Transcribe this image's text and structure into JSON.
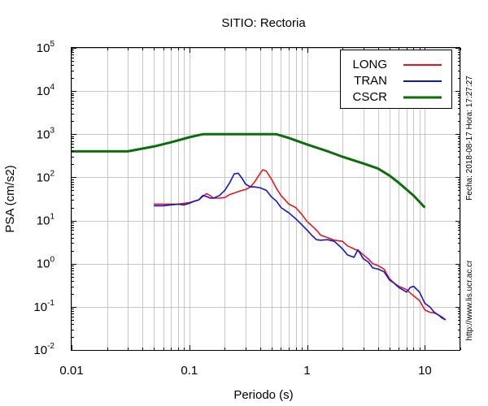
{
  "chart_data": {
    "type": "line",
    "title": "SITIO: Rectoria",
    "xlabel": "Periodo (s)",
    "ylabel": "PSA (cm/s2)",
    "x_scale": "log",
    "y_scale": "log",
    "xlim": [
      0.01,
      20
    ],
    "ylim": [
      0.01,
      100000
    ],
    "grid": true,
    "legend_position": "top-right",
    "x_ticks": [
      {
        "value": 0.01,
        "label": "0.01"
      },
      {
        "value": 0.1,
        "label": "0.1"
      },
      {
        "value": 1,
        "label": "1"
      },
      {
        "value": 10,
        "label": "10"
      }
    ],
    "y_ticks": [
      {
        "value": 0.01,
        "base": "10",
        "exp": "-2"
      },
      {
        "value": 0.1,
        "base": "10",
        "exp": "-1"
      },
      {
        "value": 1,
        "base": "10",
        "exp": "0"
      },
      {
        "value": 10,
        "base": "10",
        "exp": "1"
      },
      {
        "value": 100,
        "base": "10",
        "exp": "2"
      },
      {
        "value": 1000,
        "base": "10",
        "exp": "3"
      },
      {
        "value": 10000,
        "base": "10",
        "exp": "4"
      },
      {
        "value": 100000,
        "base": "10",
        "exp": "5"
      }
    ],
    "series": [
      {
        "name": "LONG",
        "color": "#e8161b",
        "x": [
          0.05,
          0.06,
          0.07,
          0.08,
          0.09,
          0.1,
          0.11,
          0.12,
          0.13,
          0.14,
          0.15,
          0.16,
          0.18,
          0.2,
          0.22,
          0.25,
          0.28,
          0.3,
          0.33,
          0.36,
          0.4,
          0.42,
          0.45,
          0.5,
          0.55,
          0.6,
          0.7,
          0.8,
          0.9,
          1.0,
          1.1,
          1.2,
          1.3,
          1.5,
          1.7,
          2.0,
          2.2,
          2.5,
          2.8,
          3.0,
          3.3,
          3.6,
          4.0,
          4.5,
          5.0,
          5.5,
          6.0,
          7.0,
          8.0,
          9.0,
          10.0,
          11.0,
          12.0,
          13.0,
          14.0,
          15.0
        ],
        "y": [
          24,
          24,
          24,
          24,
          25,
          26,
          28,
          30,
          36,
          42,
          38,
          33,
          33,
          34,
          40,
          45,
          50,
          52,
          60,
          80,
          125,
          150,
          140,
          90,
          55,
          38,
          24,
          20,
          14,
          9.5,
          7.5,
          6,
          4.6,
          4.0,
          3.5,
          3.3,
          2.6,
          2.2,
          1.9,
          1.6,
          1.3,
          1.0,
          0.9,
          0.75,
          0.45,
          0.35,
          0.3,
          0.25,
          0.18,
          0.14,
          0.085,
          0.075,
          0.072,
          0.065,
          0.058,
          0.05
        ]
      },
      {
        "name": "TRAN",
        "color": "#1414cc",
        "x": [
          0.05,
          0.06,
          0.07,
          0.08,
          0.09,
          0.1,
          0.11,
          0.12,
          0.13,
          0.14,
          0.15,
          0.16,
          0.18,
          0.2,
          0.22,
          0.24,
          0.26,
          0.28,
          0.3,
          0.33,
          0.36,
          0.4,
          0.45,
          0.5,
          0.55,
          0.6,
          0.7,
          0.8,
          0.9,
          1.0,
          1.1,
          1.2,
          1.3,
          1.5,
          1.7,
          2.0,
          2.2,
          2.5,
          2.7,
          3.0,
          3.3,
          3.6,
          4.0,
          4.5,
          5.0,
          5.5,
          6.0,
          7.0,
          7.5,
          8.0,
          9.0,
          10.0,
          11.0,
          12.0,
          13.0,
          14.0,
          15.0
        ],
        "y": [
          22,
          22,
          23,
          24,
          23,
          25,
          28,
          30,
          38,
          36,
          33,
          33,
          38,
          50,
          75,
          120,
          125,
          95,
          70,
          60,
          60,
          57,
          50,
          35,
          28,
          20,
          15,
          11,
          8.0,
          6.0,
          4.5,
          3.6,
          3.5,
          3.6,
          3.3,
          2.2,
          1.6,
          1.4,
          2.1,
          1.3,
          1.1,
          0.8,
          0.75,
          0.65,
          0.42,
          0.35,
          0.28,
          0.22,
          0.28,
          0.3,
          0.22,
          0.12,
          0.1,
          0.075,
          0.065,
          0.055,
          0.05
        ]
      },
      {
        "name": "CSCR",
        "color": "#0a6e0a",
        "x": [
          0.01,
          0.02,
          0.03,
          0.05,
          0.07,
          0.1,
          0.13,
          0.2,
          0.3,
          0.4,
          0.55,
          0.7,
          1.0,
          1.5,
          2.0,
          3.0,
          4.0,
          5.0,
          6.0,
          7.0,
          8.0,
          10.0
        ],
        "y": [
          400,
          400,
          400,
          520,
          650,
          850,
          1000,
          1000,
          1000,
          1000,
          1000,
          820,
          580,
          400,
          300,
          210,
          160,
          110,
          75,
          52,
          38,
          20
        ]
      }
    ],
    "annotations": {
      "date_text": "Fecha: 2018-08-17  Hora: 17:27:27",
      "url_text": "http://www.lis.ucr.ac.cr"
    }
  }
}
